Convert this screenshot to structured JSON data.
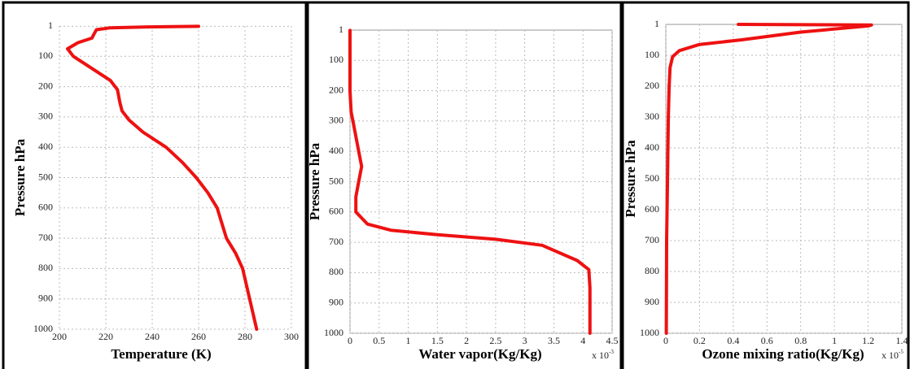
{
  "chart_data": [
    {
      "type": "line",
      "ylabel": "Pressure hPa",
      "xlabel": "Temperature (K)",
      "color": "#ee1111",
      "grid": true,
      "y_inverted": true,
      "xlim": [
        200,
        300
      ],
      "xticks": [
        200,
        220,
        240,
        260,
        280,
        300
      ],
      "ylim": [
        0,
        1000
      ],
      "yticks": [
        1,
        100,
        200,
        300,
        400,
        500,
        600,
        700,
        800,
        900,
        1000
      ],
      "x": [
        260,
        238,
        222,
        216,
        215,
        214,
        208,
        203.5,
        206,
        214,
        222,
        225,
        226,
        227,
        230,
        236,
        246,
        253,
        259,
        264,
        268,
        270,
        272,
        276,
        279,
        282,
        285
      ],
      "values": [
        1,
        3,
        6,
        12,
        25,
        40,
        55,
        75,
        100,
        140,
        180,
        210,
        250,
        280,
        310,
        350,
        400,
        450,
        500,
        550,
        600,
        650,
        700,
        750,
        800,
        900,
        1000
      ]
    },
    {
      "type": "line",
      "ylabel": "Pressure hPa",
      "xlabel": "Water vapor(Kg/Kg)",
      "color": "#ee1111",
      "grid": true,
      "y_inverted": true,
      "x_scale": {
        "base": "x 10",
        "exponent": "-3"
      },
      "xlim": [
        0,
        4.5
      ],
      "xticks": [
        0,
        0.5,
        1,
        1.5,
        2,
        2.5,
        3,
        3.5,
        4,
        4.5
      ],
      "ylim": [
        0,
        1000
      ],
      "yticks": [
        1,
        100,
        200,
        300,
        400,
        500,
        600,
        700,
        800,
        900,
        1000
      ],
      "x": [
        0,
        0,
        0.02,
        0.05,
        0.15,
        0.2,
        0.15,
        0.1,
        0.1,
        0.3,
        0.7,
        1.5,
        2.5,
        3.3,
        3.9,
        4.1,
        4.12,
        4.12
      ],
      "values": [
        1,
        200,
        270,
        300,
        400,
        450,
        500,
        550,
        600,
        640,
        660,
        675,
        690,
        710,
        760,
        790,
        850,
        1000
      ]
    },
    {
      "type": "line",
      "ylabel": "Pressure hPa",
      "xlabel": "Ozone mixing ratio(Kg/Kg)",
      "color": "#ee1111",
      "grid": true,
      "y_inverted": true,
      "x_scale": {
        "base": "x 10",
        "exponent": "-5"
      },
      "xlim": [
        0,
        1.4
      ],
      "xticks": [
        0,
        0.2,
        0.4,
        0.6,
        0.8,
        1,
        1.2,
        1.4
      ],
      "ylim": [
        0,
        1000
      ],
      "yticks": [
        1,
        100,
        200,
        300,
        400,
        500,
        600,
        700,
        800,
        900,
        1000
      ],
      "x": [
        0.43,
        1.22,
        1.2,
        0.8,
        0.45,
        0.2,
        0.08,
        0.04,
        0.025,
        0.02,
        0.015,
        0.01,
        0.005,
        0.003
      ],
      "values": [
        0,
        2,
        5,
        25,
        50,
        65,
        85,
        105,
        140,
        200,
        300,
        500,
        700,
        1000
      ]
    }
  ]
}
